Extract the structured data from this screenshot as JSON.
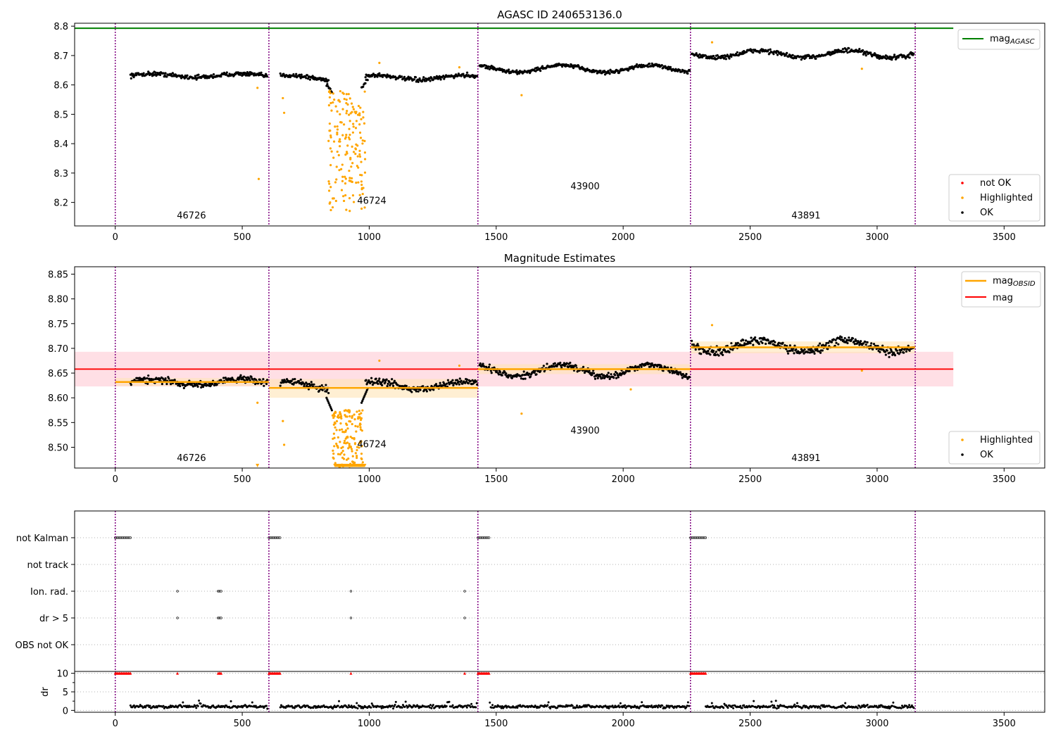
{
  "colors": {
    "ok": "#000000",
    "highlighted": "#ffa500",
    "not_ok": "#ff0000",
    "mag_agasc": "#008000",
    "mag_obsid": "#ffa500",
    "mag": "#ff0000",
    "boundary": "#800080",
    "band_mag": "#ffc0cb",
    "band_obsid": "#ffe4b5"
  },
  "chart_data": [
    {
      "type": "scatter",
      "title": "AGASC ID 240653136.0",
      "xlim": [
        -160,
        3660
      ],
      "ylim": [
        8.12,
        8.81
      ],
      "xticks": [
        0,
        500,
        1000,
        1500,
        2000,
        2500,
        3000,
        3500
      ],
      "yticks": [
        8.2,
        8.3,
        8.4,
        8.5,
        8.6,
        8.7,
        8.8
      ],
      "ytick_labels": [
        "8.2",
        "8.3",
        "8.4",
        "8.5",
        "8.6",
        "8.7",
        "8.8"
      ],
      "obs_boundaries": [
        0,
        605,
        1428,
        2265,
        3150
      ],
      "mag_agasc": 8.8,
      "obs_labels": [
        {
          "text": "46726",
          "x": 300,
          "y": 8.145
        },
        {
          "text": "46724",
          "x": 1010,
          "y": 8.195
        },
        {
          "text": "43900",
          "x": 1850,
          "y": 8.245
        },
        {
          "text": "43891",
          "x": 2720,
          "y": 8.145
        }
      ],
      "segments": [
        {
          "x0": 60,
          "x1": 600,
          "center": 8.632,
          "amp": 0.006,
          "noise": 0.008
        },
        {
          "x0": 650,
          "x1": 1425,
          "center": 8.625,
          "amp": 0.008,
          "noise": 0.008
        },
        {
          "x0": 1435,
          "x1": 2262,
          "center": 8.655,
          "amp": 0.012,
          "noise": 0.007
        },
        {
          "x0": 2270,
          "x1": 3145,
          "center": 8.705,
          "amp": 0.012,
          "noise": 0.009
        }
      ],
      "dip": {
        "x0": 840,
        "x1": 985,
        "ymin": 8.17,
        "ymax": 8.58
      },
      "highlighted_extra": [
        [
          560,
          8.59
        ],
        [
          565,
          8.28
        ],
        [
          660,
          8.555
        ],
        [
          665,
          8.505
        ],
        [
          1040,
          8.675
        ],
        [
          1600,
          8.565
        ],
        [
          2350,
          8.745
        ],
        [
          2940,
          8.655
        ],
        [
          1355,
          8.66
        ]
      ],
      "legend_lines": [
        {
          "label": "mag",
          "sub": "AGASC"
        }
      ],
      "legend_points": [
        {
          "label": "not OK",
          "key": "not_ok"
        },
        {
          "label": "Highlighted",
          "key": "highlighted"
        },
        {
          "label": "OK",
          "key": "ok"
        }
      ]
    },
    {
      "type": "scatter",
      "title": "Magnitude Estimates",
      "xlim": [
        -160,
        3660
      ],
      "ylim": [
        8.458,
        8.865
      ],
      "xticks": [
        0,
        500,
        1000,
        1500,
        2000,
        2500,
        3000,
        3500
      ],
      "yticks": [
        8.5,
        8.55,
        8.6,
        8.65,
        8.7,
        8.75,
        8.8,
        8.85
      ],
      "ytick_labels": [
        "8.50",
        "8.55",
        "8.60",
        "8.65",
        "8.70",
        "8.75",
        "8.80",
        "8.85"
      ],
      "obs_boundaries": [
        0,
        605,
        1428,
        2265,
        3150
      ],
      "mag": 8.658,
      "mag_band": [
        8.623,
        8.693
      ],
      "mag_xrange": [
        -160,
        3300
      ],
      "mag_obsid": [
        {
          "x0": 0,
          "x1": 605,
          "value": 8.632,
          "band": [
            8.624,
            8.64
          ]
        },
        {
          "x0": 605,
          "x1": 1428,
          "value": 8.62,
          "band": [
            8.6,
            8.638
          ]
        },
        {
          "x0": 1428,
          "x1": 2265,
          "value": 8.658,
          "band": [
            8.648,
            8.668
          ]
        },
        {
          "x0": 2265,
          "x1": 3150,
          "value": 8.702,
          "band": [
            8.69,
            8.714
          ]
        }
      ],
      "obs_labels": [
        {
          "text": "46726",
          "x": 300,
          "y": 8.472
        },
        {
          "text": "46724",
          "x": 1010,
          "y": 8.5
        },
        {
          "text": "43900",
          "x": 1850,
          "y": 8.528
        },
        {
          "text": "43891",
          "x": 2720,
          "y": 8.472
        }
      ],
      "legend_lines": [
        {
          "label": "mag",
          "sub": "OBSID",
          "key": "mag_obsid"
        },
        {
          "label": "mag",
          "sub": "",
          "key": "mag"
        }
      ],
      "legend_points": [
        {
          "label": "Highlighted",
          "key": "highlighted"
        },
        {
          "label": "OK",
          "key": "ok"
        }
      ]
    },
    {
      "type": "scatter",
      "title": "",
      "xlim": [
        -160,
        3660
      ],
      "xticks": [
        0,
        500,
        1000,
        1500,
        2000,
        2500,
        3000,
        3500
      ],
      "flag_rows": [
        "not Kalman",
        "not track",
        "Ion. rad.",
        "dr > 5",
        "OBS not OK"
      ],
      "flags": {
        "not Kalman": [
          [
            0,
            60
          ],
          [
            605,
            650
          ],
          [
            1428,
            1475
          ],
          [
            2265,
            2325
          ]
        ],
        "Ion. rad.": [
          [
            245,
            248
          ],
          [
            405,
            420
          ],
          [
            928,
            931
          ],
          [
            1376,
            1379
          ]
        ],
        "dr > 5": [
          [
            245,
            248
          ],
          [
            405,
            420
          ],
          [
            928,
            931
          ],
          [
            1376,
            1379
          ]
        ]
      },
      "obs_boundaries": [
        0,
        605,
        1428,
        2265,
        3150
      ]
    },
    {
      "type": "scatter",
      "title": "",
      "ylabel": "dr",
      "xlim": [
        -160,
        3660
      ],
      "ylim": [
        -0.5,
        10.5
      ],
      "xticks": [
        0,
        500,
        1000,
        1500,
        2000,
        2500,
        3000,
        3500
      ],
      "yticks": [
        0,
        5,
        10
      ],
      "ytick_labels": [
        "0",
        "5",
        "10"
      ],
      "dr_capped": [
        [
          0,
          60
        ],
        [
          245,
          248
        ],
        [
          405,
          420
        ],
        [
          605,
          650
        ],
        [
          928,
          931
        ],
        [
          1376,
          1379
        ],
        [
          1428,
          1475
        ],
        [
          2265,
          2325
        ]
      ],
      "dr_typical": 1.0,
      "obs_boundaries": [
        0,
        605,
        1428,
        2265,
        3150
      ]
    }
  ]
}
